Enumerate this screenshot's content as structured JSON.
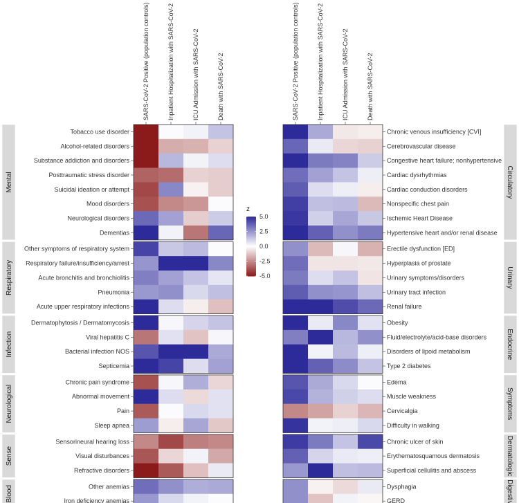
{
  "chart_data": {
    "type": "heatmap",
    "title": "",
    "xlabel": "",
    "ylabel": "",
    "columns": [
      "SARS-CoV-2 Positive (population controls)",
      "Inpatient Hospitalization with SARS-CoV-2",
      "ICU Admission with SARS-CoV-2",
      "Death with SARS-CoV-2"
    ],
    "legend": {
      "title": "z",
      "range": [
        -5,
        5
      ],
      "ticks": [
        "5.0",
        "2.5",
        "0.0",
        "-2.5",
        "-5.0"
      ],
      "colors": {
        "high": "#2d2a9a",
        "mid": "#ffffff",
        "low": "#8b1a1a"
      }
    },
    "panels": [
      {
        "side": "left",
        "groups": [
          {
            "name": "Mental",
            "rows": [
              {
                "label": "Tobacco use disorder",
                "values": [
                  -5.0,
                  0.1,
                  0.3,
                  1.4
                ]
              },
              {
                "label": "Alcohol-related disorders",
                "values": [
                  -5.0,
                  -1.8,
                  -1.7,
                  -1.0
                ]
              },
              {
                "label": "Substance addiction and disorders",
                "values": [
                  -5.0,
                  1.7,
                  0.3,
                  0.8
                ]
              },
              {
                "label": "Posttraumatic stress disorder",
                "values": [
                  -3.4,
                  -3.2,
                  -1.0,
                  -1.1
                ]
              },
              {
                "label": "Suicidal ideation or attempt",
                "values": [
                  -4.0,
                  2.8,
                  -0.3,
                  -1.1
                ]
              },
              {
                "label": "Mood disorders",
                "values": [
                  -3.8,
                  -2.6,
                  -2.3,
                  0.1
                ]
              },
              {
                "label": "Neurological disorders",
                "values": [
                  3.5,
                  2.2,
                  -1.1,
                  1.2
                ]
              },
              {
                "label": "Dementias",
                "values": [
                  5.0,
                  0.3,
                  -3.0,
                  3.6
                ]
              }
            ]
          },
          {
            "name": "Respiratory",
            "rows": [
              {
                "label": "Other symptoms of respiratory system",
                "values": [
                  4.4,
                  1.3,
                  1.6,
                  0.1
                ]
              },
              {
                "label": "Respiratory failure/insufficiency/arrest",
                "values": [
                  2.5,
                  5.0,
                  5.0,
                  2.8
                ]
              },
              {
                "label": "Acute bronchitis and bronchiolitis",
                "values": [
                  3.0,
                  2.2,
                  1.4,
                  0.6
                ]
              },
              {
                "label": "Pneumonia",
                "values": [
                  2.4,
                  2.6,
                  0.9,
                  1.5
                ]
              },
              {
                "label": "Acute upper respiratory infections",
                "values": [
                  5.0,
                  0.8,
                  -0.4,
                  -1.4
                ]
              }
            ]
          },
          {
            "name": "Infection",
            "rows": [
              {
                "label": "Dermatophytosis / Dermatomycosis",
                "values": [
                  5.0,
                  0.2,
                  1.0,
                  1.4
                ]
              },
              {
                "label": "Viral hepatitis C",
                "values": [
                  -3.0,
                  0.7,
                  -1.3,
                  0.2
                ]
              },
              {
                "label": "Bacterial infection NOS",
                "values": [
                  4.0,
                  5.0,
                  5.0,
                  2.0
                ]
              },
              {
                "label": "Septicemia",
                "values": [
                  5.0,
                  4.4,
                  0.8,
                  2.2
                ]
              }
            ]
          },
          {
            "name": "Neurological",
            "rows": [
              {
                "label": "Chronic pain syndrome",
                "values": [
                  -3.8,
                  0.2,
                  1.9,
                  -0.9
                ]
              },
              {
                "label": "Abnormal movement",
                "values": [
                  5.0,
                  0.8,
                  -0.8,
                  0.7
                ]
              },
              {
                "label": "Pain",
                "values": [
                  -3.6,
                  0.1,
                  0.9,
                  0.7
                ]
              },
              {
                "label": "Sleep apnea",
                "values": [
                  2.3,
                  -0.4,
                  2.1,
                  -1.2
                ]
              }
            ]
          },
          {
            "name": "Sense",
            "rows": [
              {
                "label": "Sensorineural hearing loss",
                "values": [
                  -2.6,
                  -4.0,
                  -2.8,
                  -2.6
                ]
              },
              {
                "label": "Visual disturbances",
                "values": [
                  -3.7,
                  -0.9,
                  0.3,
                  -1.9
                ]
              },
              {
                "label": "Refractive disorders",
                "values": [
                  -5.0,
                  -3.6,
                  -1.4,
                  0.5
                ]
              }
            ]
          },
          {
            "name": "Blood",
            "rows": [
              {
                "label": "Other anemias",
                "values": [
                  3.4,
                  2.6,
                  1.9,
                  2.0
                ]
              },
              {
                "label": "Iron deficiency anemias",
                "values": [
                  2.4,
                  0.9,
                  0.3,
                  0.1
                ]
              }
            ]
          }
        ]
      },
      {
        "side": "right",
        "groups": [
          {
            "name": "Circulatory",
            "rows": [
              {
                "label": "Chronic venous insufficiency [CVI]",
                "values": [
                  5.0,
                  2.0,
                  -0.5,
                  -0.4
                ]
              },
              {
                "label": "Cerebrovascular disease",
                "values": [
                  3.6,
                  0.5,
                  -0.9,
                  -1.0
                ]
              },
              {
                "label": "Congestive heart failure; nonhypertensive",
                "values": [
                  5.0,
                  3.1,
                  2.9,
                  1.2
                ]
              },
              {
                "label": "Cardiac dysrhythmias",
                "values": [
                  3.4,
                  2.2,
                  1.4,
                  0.4
                ]
              },
              {
                "label": "Cardiac conduction disorders",
                "values": [
                  3.8,
                  0.8,
                  0.4,
                  -0.4
                ]
              },
              {
                "label": "Nonspecific chest pain",
                "values": [
                  4.5,
                  1.5,
                  1.6,
                  -1.5
                ]
              },
              {
                "label": "Ischemic Heart Disease",
                "values": [
                  4.7,
                  1.1,
                  2.1,
                  1.3
                ]
              },
              {
                "label": "Hypertensive heart and/or renal disease",
                "values": [
                  5.0,
                  3.7,
                  2.6,
                  3.1
                ]
              }
            ]
          },
          {
            "name": "Urinary",
            "rows": [
              {
                "label": "Erectile dysfunction [ED]",
                "values": [
                  2.6,
                  -1.5,
                  0.2,
                  -1.7
                ]
              },
              {
                "label": "Hyperplasia of prostate",
                "values": [
                  3.4,
                  -0.6,
                  -0.6,
                  -0.5
                ]
              },
              {
                "label": "Urinary symptoms/disorders",
                "values": [
                  3.1,
                  0.8,
                  1.4,
                  -0.6
                ]
              },
              {
                "label": "Urinary tract infection",
                "values": [
                  3.8,
                  2.6,
                  2.5,
                  1.5
                ]
              },
              {
                "label": "Renal failure",
                "values": [
                  5.0,
                  5.0,
                  4.2,
                  3.5
                ]
              }
            ]
          },
          {
            "name": "Endocrine",
            "rows": [
              {
                "label": "Obesity",
                "values": [
                  5.0,
                  0.5,
                  2.8,
                  0.7
                ]
              },
              {
                "label": "Fluid/electrolyte/acid-base disorders",
                "values": [
                  3.0,
                  5.0,
                  1.7,
                  2.6
                ]
              },
              {
                "label": "Disorders of lipoid metabolism",
                "values": [
                  5.0,
                  0.3,
                  1.6,
                  0.4
                ]
              },
              {
                "label": "Type 2 diabetes",
                "values": [
                  5.0,
                  3.7,
                  2.7,
                  1.4
                ]
              }
            ]
          },
          {
            "name": "Symptoms",
            "rows": [
              {
                "label": "Edema",
                "values": [
                  4.0,
                  2.0,
                  0.9,
                  0.1
                ]
              },
              {
                "label": "Muscle weakness",
                "values": [
                  4.3,
                  1.8,
                  1.1,
                  0.8
                ]
              },
              {
                "label": "Cervicalgia",
                "values": [
                  -2.6,
                  -2.0,
                  -1.0,
                  -1.6
                ]
              },
              {
                "label": "Difficulty in walking",
                "values": [
                  4.8,
                  0.3,
                  0.4,
                  0.9
                ]
              }
            ]
          },
          {
            "name": "Dermatologic",
            "rows": [
              {
                "label": "Chronic ulcer of skin",
                "values": [
                  4.6,
                  3.1,
                  1.4,
                  4.3
                ]
              },
              {
                "label": "Erythematosquamous dermatosis",
                "values": [
                  3.7,
                  1.0,
                  0.5,
                  0.4
                ]
              },
              {
                "label": "Superficial cellulitis and abscess",
                "values": [
                  2.4,
                  5.0,
                  1.5,
                  1.6
                ]
              }
            ]
          },
          {
            "name": "Digestive",
            "rows": [
              {
                "label": "Dysphagia",
                "values": [
                  2.6,
                  -0.3,
                  -0.8,
                  0.5
                ]
              },
              {
                "label": "GERD",
                "values": [
                  2.6,
                  -1.3,
                  0.3,
                  -0.2
                ]
              }
            ]
          }
        ]
      }
    ]
  }
}
